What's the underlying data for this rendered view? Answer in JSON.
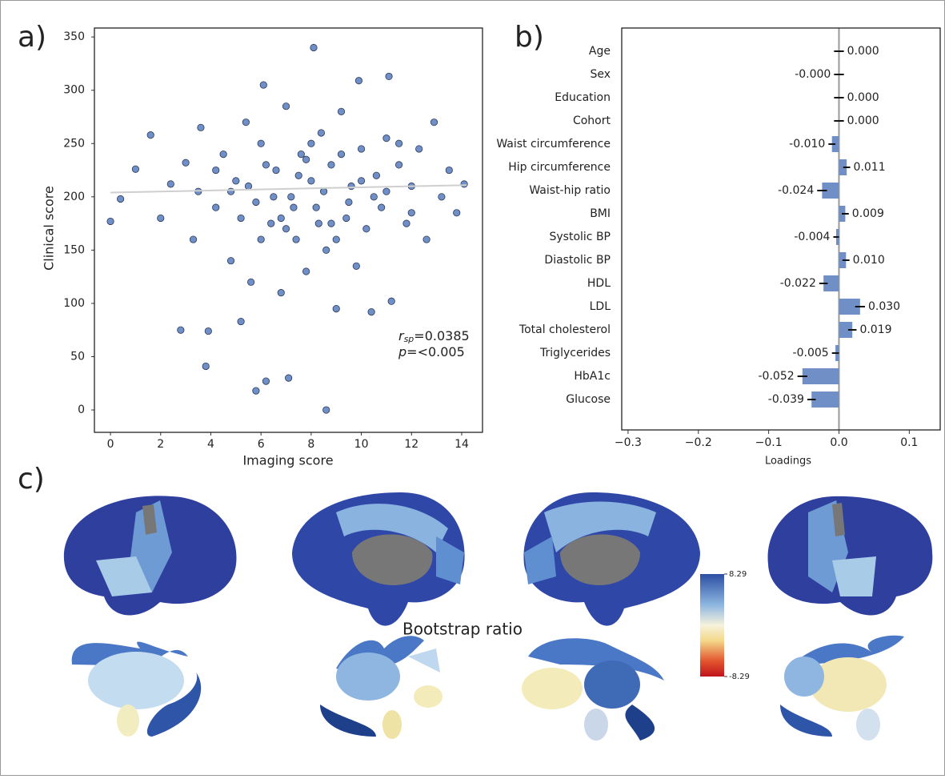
{
  "chart_data": [
    {
      "type": "scatter",
      "panel_label": "a)",
      "xlabel": "Imaging score",
      "ylabel": "Clinical score",
      "x": [
        0,
        0.4,
        1.0,
        1.6,
        2.0,
        2.4,
        2.8,
        3.0,
        3.3,
        3.6,
        3.8,
        3.9,
        4.2,
        4.5,
        4.8,
        5.0,
        5.2,
        5.4,
        5.6,
        5.8,
        5.8,
        6.0,
        6.1,
        6.2,
        6.4,
        6.6,
        6.8,
        7.0,
        7.1,
        7.2,
        7.4,
        7.6,
        7.8,
        8.0,
        8.1,
        8.2,
        8.4,
        8.6,
        8.6,
        8.8,
        9.0,
        9.2,
        9.4,
        9.6,
        9.8,
        9.9,
        10.0,
        10.2,
        10.4,
        10.6,
        10.8,
        11.0,
        11.1,
        11.2,
        11.5,
        11.8,
        12.0,
        12.3,
        12.6,
        12.9,
        13.2,
        13.5,
        13.8,
        14.1,
        5.5,
        6.5,
        7.5,
        8.5,
        9.5,
        6.8,
        7.8,
        8.8,
        6.2,
        9.2,
        10.5,
        4.8,
        7.0,
        8.0,
        9.0,
        10.0,
        11.0,
        5.2,
        6.0,
        7.3,
        8.3,
        12.0,
        4.2,
        11.5,
        3.5
      ],
      "y": [
        177,
        198,
        226,
        258,
        180,
        212,
        75,
        232,
        160,
        265,
        41,
        74,
        190,
        240,
        140,
        215,
        83,
        270,
        120,
        18,
        195,
        250,
        305,
        27,
        175,
        225,
        110,
        285,
        30,
        200,
        160,
        240,
        130,
        215,
        340,
        190,
        260,
        0,
        150,
        230,
        95,
        280,
        180,
        210,
        135,
        309,
        245,
        170,
        92,
        220,
        190,
        255,
        313,
        102,
        230,
        175,
        210,
        245,
        160,
        270,
        200,
        225,
        185,
        212,
        210,
        200,
        220,
        205,
        195,
        180,
        235,
        175,
        230,
        240,
        200,
        205,
        170,
        250,
        160,
        215,
        205,
        180,
        160,
        190,
        175,
        185,
        225,
        250,
        205
      ],
      "color": "#6f8fc6",
      "trend": {
        "x": [
          0,
          14.2
        ],
        "y": [
          204,
          211
        ],
        "color": "#cfcfcf"
      },
      "annotations": {
        "r_symbol": "r",
        "r_sub": "sp",
        "r_value": "=0.0385",
        "p_symbol": "p",
        "p_value": "=<0.005"
      },
      "xlim": [
        -0.64,
        14.83
      ],
      "xticks": [
        0,
        2,
        4,
        6,
        8,
        10,
        12,
        14
      ],
      "ylim": [
        -21,
        358.4
      ],
      "yticks": [
        0,
        50,
        100,
        150,
        200,
        250,
        300,
        350
      ]
    },
    {
      "type": "bar",
      "orientation": "horizontal",
      "panel_label": "b)",
      "xlabel": "Loadings",
      "categories": [
        "Age",
        "Sex",
        "Education",
        "Cohort",
        "Waist circumference",
        "Hip circumference",
        "Waist-hip ratio",
        "BMI",
        "Systolic BP",
        "Diastolic BP",
        "HDL",
        "LDL",
        "Total cholesterol",
        "Triglycerides",
        "HbA1c",
        "Glucose"
      ],
      "values": [
        0,
        0,
        0,
        0,
        -0.01,
        0.011,
        -0.024,
        0.009,
        -0.004,
        0.01,
        -0.022,
        0.03,
        0.019,
        -0.005,
        -0.052,
        -0.039
      ],
      "value_labels": [
        "0.000",
        "-0.000",
        "0.000",
        "0.000",
        "-0.010",
        "0.011",
        "-0.024",
        "0.009",
        "-0.004",
        "0.010",
        "-0.022",
        "0.030",
        "0.019",
        "-0.005",
        "-0.052",
        "-0.039"
      ],
      "errors": [
        0.007,
        0.007,
        0.007,
        0.007,
        0.005,
        0.005,
        0.007,
        0.005,
        0.004,
        0.005,
        0.006,
        0.007,
        0.006,
        0.005,
        0.007,
        0.006
      ],
      "error_signs": [
        1,
        -1,
        1,
        1,
        -1,
        1,
        -1,
        1,
        -1,
        1,
        -1,
        1,
        1,
        -1,
        -1,
        -1
      ],
      "color": "#6f8fc6",
      "xlim": [
        -0.309,
        0.144
      ],
      "xticks": [
        {
          "value": -0.3,
          "label": "−0.3"
        },
        {
          "value": -0.2,
          "label": "−0.2"
        },
        {
          "value": -0.1,
          "label": "−0.1"
        },
        {
          "value": 0,
          "label": "0.0"
        },
        0.1
      ]
    }
  ],
  "brain_panel": {
    "panel_label": "c)",
    "title": "Bootstrap ratio",
    "colorbar": {
      "ticks": [
        8.29,
        -8.29
      ]
    }
  }
}
